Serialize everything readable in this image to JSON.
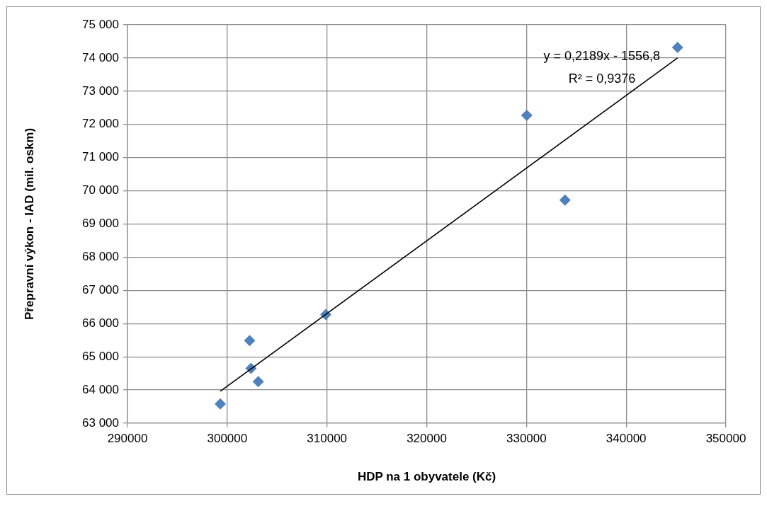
{
  "chart_data": {
    "type": "scatter",
    "xlabel": "HDP na 1 obyvatele (Kč)",
    "ylabel": "Přepravní výkon - IAD (mil. oskm)",
    "xlim": [
      290000,
      350000
    ],
    "xticks": [
      290000,
      300000,
      310000,
      320000,
      330000,
      340000,
      350000
    ],
    "ylim": [
      63000,
      75000
    ],
    "yticks": [
      {
        "value": 63000,
        "label": "63 000"
      },
      {
        "value": 64000,
        "label": "64 000"
      },
      {
        "value": 65000,
        "label": "65 000"
      },
      {
        "value": 66000,
        "label": "66 000"
      },
      {
        "value": 67000,
        "label": "67 000"
      },
      {
        "value": 68000,
        "label": "68 000"
      },
      {
        "value": 69000,
        "label": "69 000"
      },
      {
        "value": 70000,
        "label": "70 000"
      },
      {
        "value": 71000,
        "label": "71 000"
      },
      {
        "value": 72000,
        "label": "72 000"
      },
      {
        "value": 73000,
        "label": "73 000"
      },
      {
        "value": 74000,
        "label": "74 000"
      },
      {
        "value": 75000,
        "label": "75 000"
      }
    ],
    "grid": true,
    "legend": false,
    "series": [
      {
        "type": "scatter",
        "marker": "diamond",
        "color": "#4f81bd",
        "x": [
          299300,
          302250,
          302380,
          303110,
          309880,
          330030,
          333870,
          345150
        ],
        "values": [
          63580,
          65490,
          64650,
          64250,
          66270,
          72270,
          69720,
          74320
        ]
      },
      {
        "type": "line",
        "marker": "none",
        "color": "#000000",
        "x": [
          299300,
          345150
        ],
        "values": [
          63960,
          74000
        ]
      }
    ],
    "annotations": [
      "y = 0,2189x - 1556,8",
      "R² = 0,9376"
    ]
  }
}
